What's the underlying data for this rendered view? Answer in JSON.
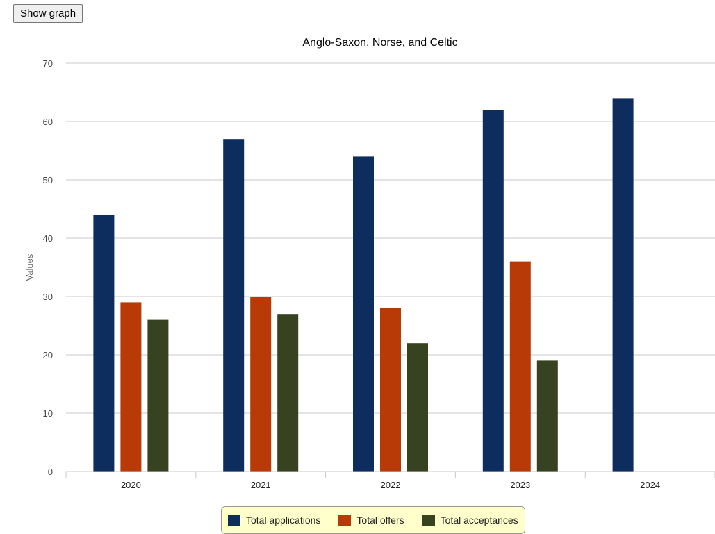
{
  "toolbar": {
    "show_graph_label": "Show graph"
  },
  "chart_data": {
    "type": "bar",
    "title": "Anglo-Saxon, Norse, and Celtic",
    "xlabel": "",
    "ylabel": "Values",
    "ylim": [
      0,
      70
    ],
    "yticks": [
      0,
      10,
      20,
      30,
      40,
      50,
      60,
      70
    ],
    "grid": true,
    "legend_position": "bottom-center",
    "categories": [
      "2020",
      "2021",
      "2022",
      "2023",
      "2024"
    ],
    "series": [
      {
        "name": "Total applications",
        "color": "#0c2d5e",
        "values": [
          44,
          57,
          54,
          62,
          64
        ]
      },
      {
        "name": "Total offers",
        "color": "#b83a07",
        "values": [
          29,
          30,
          28,
          36,
          null
        ]
      },
      {
        "name": "Total acceptances",
        "color": "#374220",
        "values": [
          26,
          27,
          22,
          19,
          null
        ]
      }
    ]
  }
}
